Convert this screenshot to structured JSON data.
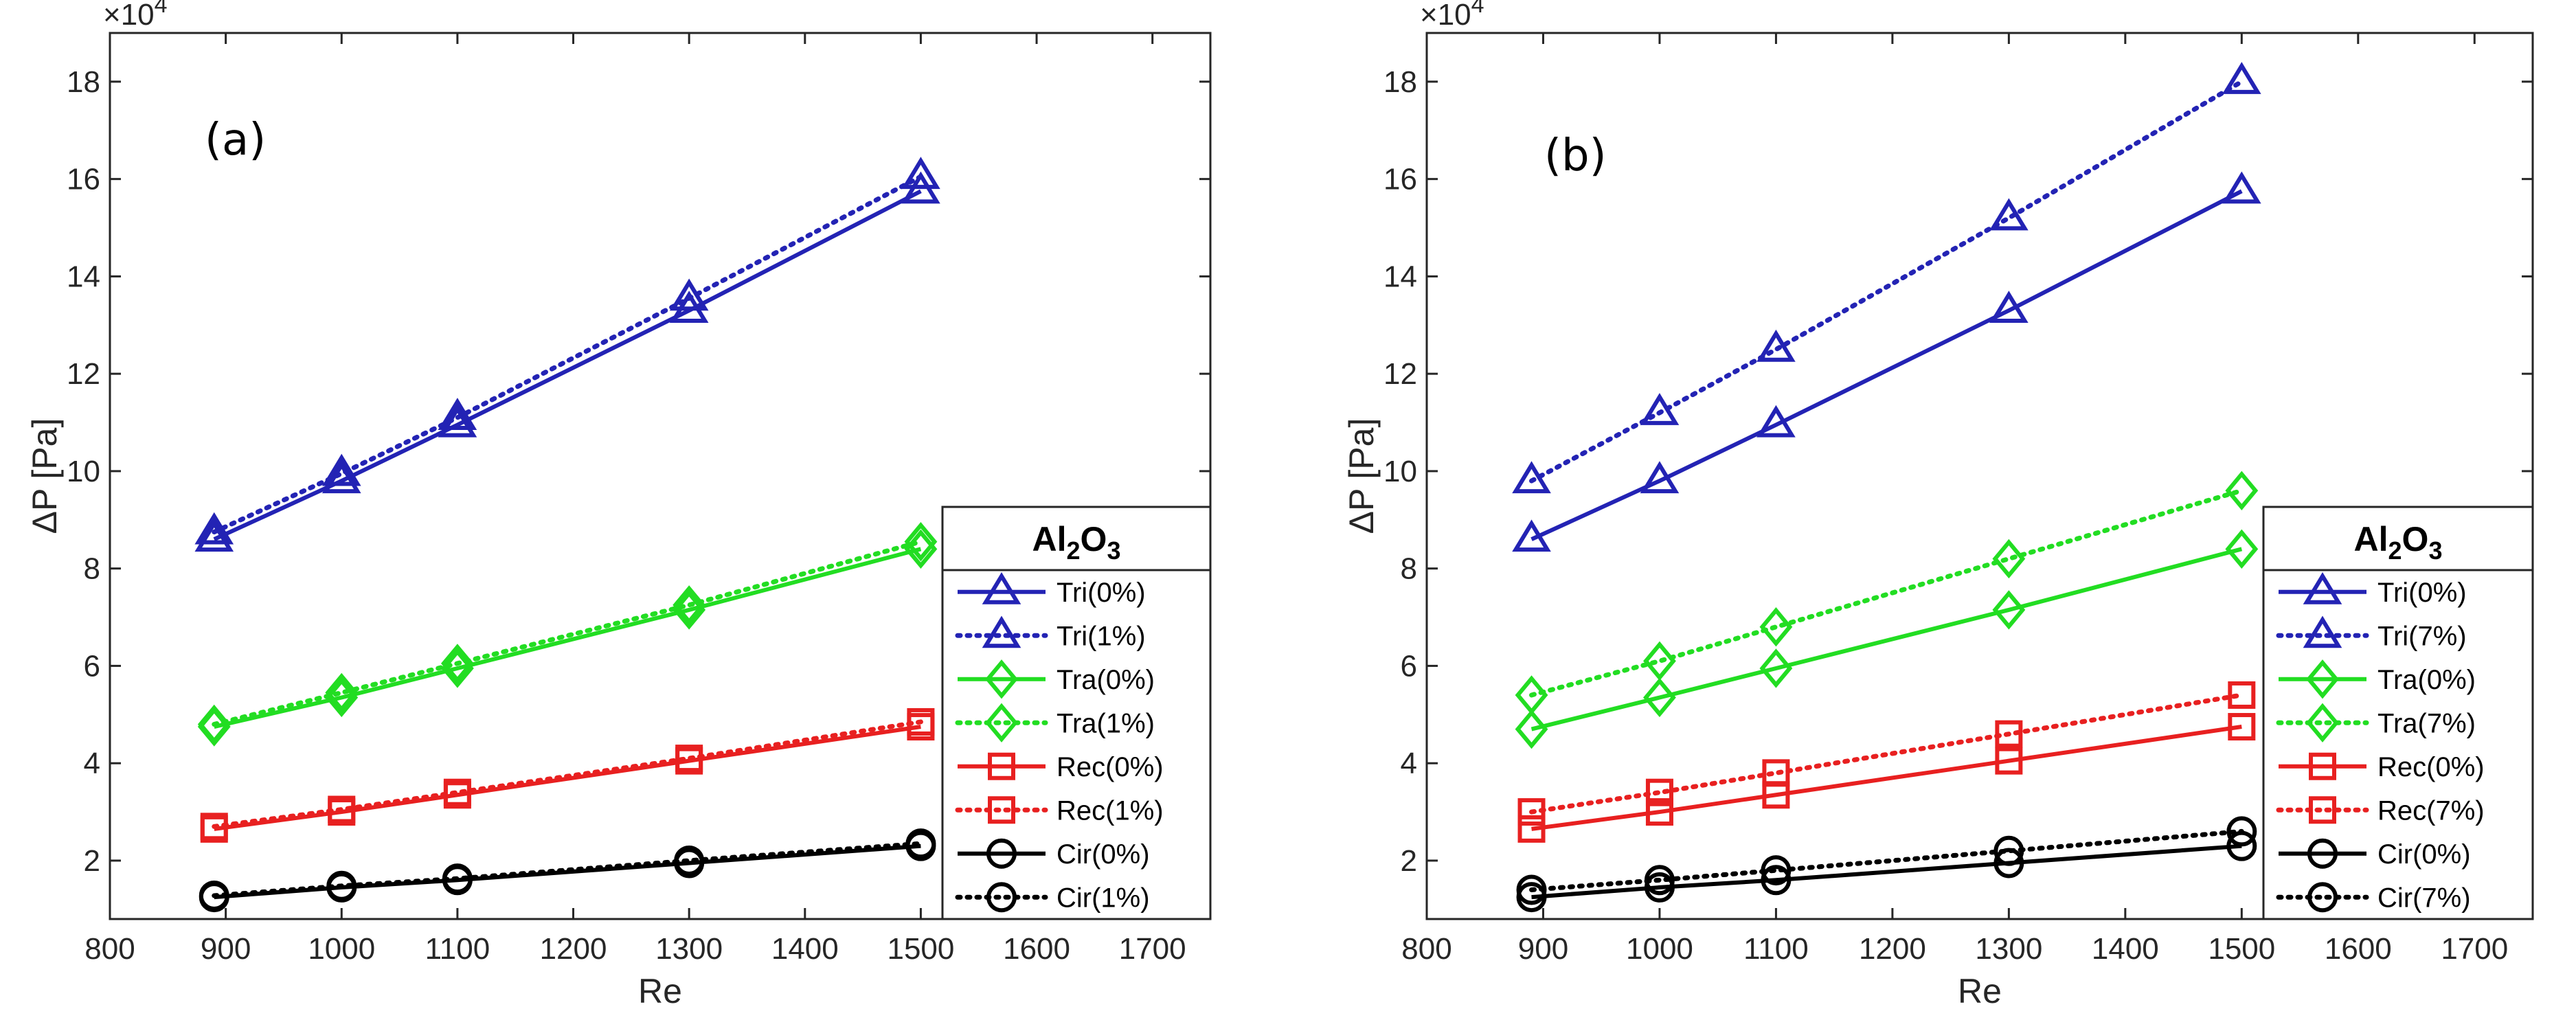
{
  "figure": {
    "background": "#ffffff"
  },
  "chart_data": [
    {
      "type": "line",
      "panel_label": "(a)",
      "xlabel": "Re",
      "ylabel": "ΔP [Pa]",
      "y_multiplier_base": "×10",
      "y_multiplier_exp": "4",
      "xlim": [
        800,
        1750
      ],
      "ylim": [
        8000,
        190000
      ],
      "xticks": [
        800,
        900,
        1000,
        1100,
        1200,
        1300,
        1400,
        1500,
        1600,
        1700
      ],
      "yticks": [
        20000,
        40000,
        60000,
        80000,
        100000,
        120000,
        140000,
        160000,
        180000
      ],
      "ytick_labels": [
        "2",
        "4",
        "6",
        "8",
        "10",
        "12",
        "14",
        "16",
        "18"
      ],
      "x": [
        890,
        1000,
        1100,
        1300,
        1500
      ],
      "legend_title": {
        "main": "Al",
        "sub1": "2",
        "mid": "O",
        "sub2": "3"
      },
      "legend_position": "lower-right",
      "series": [
        {
          "name": "Tri(0%)",
          "color": "#2323b4",
          "dash": "solid",
          "marker": "triangle",
          "values": [
            86000,
            98000,
            109500,
            133000,
            157500
          ]
        },
        {
          "name": "Tri(1%)",
          "color": "#2323b4",
          "dash": "dotted",
          "marker": "triangle",
          "values": [
            87500,
            99500,
            111000,
            135500,
            160500
          ]
        },
        {
          "name": "Tra(0%)",
          "color": "#22dd22",
          "dash": "solid",
          "marker": "diamond",
          "values": [
            47500,
            53500,
            59500,
            71500,
            84000
          ]
        },
        {
          "name": "Tra(1%)",
          "color": "#22dd22",
          "dash": "dotted",
          "marker": "diamond",
          "values": [
            48000,
            54500,
            60500,
            72500,
            85500
          ]
        },
        {
          "name": "Rec(0%)",
          "color": "#e82020",
          "dash": "solid",
          "marker": "square",
          "values": [
            26500,
            30000,
            33500,
            40500,
            47500
          ]
        },
        {
          "name": "Rec(1%)",
          "color": "#e82020",
          "dash": "dotted",
          "marker": "square",
          "values": [
            27000,
            30500,
            34000,
            41000,
            48500
          ]
        },
        {
          "name": "Cir(0%)",
          "color": "#000000",
          "dash": "solid",
          "marker": "circle",
          "values": [
            12500,
            14500,
            16000,
            19500,
            23000
          ]
        },
        {
          "name": "Cir(1%)",
          "color": "#000000",
          "dash": "dotted",
          "marker": "circle",
          "values": [
            12800,
            14800,
            16300,
            20000,
            23500
          ]
        }
      ]
    },
    {
      "type": "line",
      "panel_label": "(b)",
      "xlabel": "Re",
      "ylabel": "ΔP [Pa]",
      "y_multiplier_base": "×10",
      "y_multiplier_exp": "4",
      "xlim": [
        800,
        1750
      ],
      "ylim": [
        8000,
        190000
      ],
      "xticks": [
        800,
        900,
        1000,
        1100,
        1200,
        1300,
        1400,
        1500,
        1600,
        1700
      ],
      "yticks": [
        20000,
        40000,
        60000,
        80000,
        100000,
        120000,
        140000,
        160000,
        180000
      ],
      "ytick_labels": [
        "2",
        "4",
        "6",
        "8",
        "10",
        "12",
        "14",
        "16",
        "18"
      ],
      "x": [
        890,
        1000,
        1100,
        1300,
        1500
      ],
      "legend_title": {
        "main": "Al",
        "sub1": "2",
        "mid": "O",
        "sub2": "3"
      },
      "legend_position": "lower-right",
      "series": [
        {
          "name": "Tri(0%)",
          "color": "#2323b4",
          "dash": "solid",
          "marker": "triangle",
          "values": [
            86000,
            98000,
            109500,
            133000,
            157500
          ]
        },
        {
          "name": "Tri(7%)",
          "color": "#2323b4",
          "dash": "dotted",
          "marker": "triangle",
          "values": [
            98000,
            112000,
            125000,
            152000,
            180000
          ]
        },
        {
          "name": "Tra(0%)",
          "color": "#22dd22",
          "dash": "solid",
          "marker": "diamond",
          "values": [
            47000,
            53500,
            59500,
            71500,
            84000
          ]
        },
        {
          "name": "Tra(7%)",
          "color": "#22dd22",
          "dash": "dotted",
          "marker": "diamond",
          "values": [
            54000,
            61000,
            68000,
            82000,
            96000
          ]
        },
        {
          "name": "Rec(0%)",
          "color": "#e82020",
          "dash": "solid",
          "marker": "square",
          "values": [
            26500,
            30000,
            33500,
            40500,
            47500
          ]
        },
        {
          "name": "Rec(7%)",
          "color": "#e82020",
          "dash": "dotted",
          "marker": "square",
          "values": [
            30000,
            34000,
            38000,
            46000,
            54000
          ]
        },
        {
          "name": "Cir(0%)",
          "color": "#000000",
          "dash": "solid",
          "marker": "circle",
          "values": [
            12500,
            14500,
            16000,
            19500,
            23000
          ]
        },
        {
          "name": "Cir(7%)",
          "color": "#000000",
          "dash": "dotted",
          "marker": "circle",
          "values": [
            14000,
            16000,
            18000,
            22000,
            26000
          ]
        }
      ]
    }
  ]
}
